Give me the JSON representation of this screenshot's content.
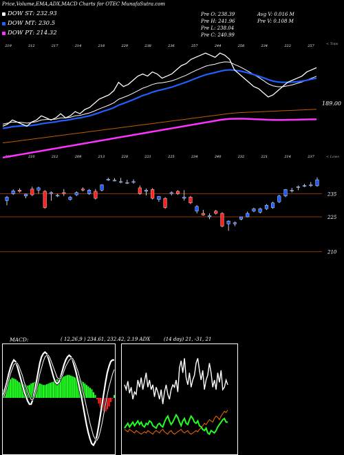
{
  "title": "Price,Volume,EMA,ADX,MACD Charts for OTEC MunafaSutra.com",
  "legend": [
    {
      "label": "DOW ST: 232.93",
      "color": "#ffffff"
    },
    {
      "label": "DOW MT: 230.5",
      "color": "#2060ff"
    },
    {
      "label": "DOW PT: 214.32",
      "color": "#ff33ff"
    }
  ],
  "stats": [
    {
      "text": "Pre  O: 238.39",
      "col": 0,
      "row": 0
    },
    {
      "text": "Pre  H: 241.96",
      "col": 0,
      "row": 1
    },
    {
      "text": "Pre  L: 238.04",
      "col": 0,
      "row": 2
    },
    {
      "text": "Pre  C: 240.99",
      "col": 0,
      "row": 3
    },
    {
      "text": "Avg V: 0.016  M",
      "col": 1,
      "row": 0
    },
    {
      "text": "Pre  V: 0.108  M",
      "col": 1,
      "row": 1
    }
  ],
  "side_labels": {
    "top": "< Tops",
    "low": "< Lows"
  },
  "ema_value_label": "189.00",
  "macd_label": "MACD:",
  "macd_params": "( 12,26,9 ) 234.61,  232.42,  2.19  ADX",
  "adx_params": "(14  day) 21,  -31,  21",
  "colors": {
    "up": "#1e5cff",
    "down": "#ff2020",
    "st": "#ffffff",
    "mt": "#2060ff",
    "pt": "#ff33ff",
    "lt": "#c06000",
    "grid": "#8b3a00",
    "macd_hist": "#22ff22"
  },
  "chart_data": [
    {
      "type": "line",
      "name": "EMA",
      "x": [
        1,
        2,
        3,
        4,
        5,
        6,
        7,
        8,
        9,
        10,
        11,
        12,
        13,
        14,
        15,
        16,
        17,
        18,
        19,
        20,
        21,
        22,
        23,
        24,
        25,
        26,
        27,
        28,
        29,
        30,
        31,
        32,
        33,
        34,
        35,
        36,
        37,
        38,
        39,
        40,
        41,
        42,
        43,
        44,
        45,
        46,
        47,
        48,
        49,
        50,
        51,
        52,
        53,
        54,
        55,
        56,
        57,
        58,
        59,
        60,
        61,
        62,
        63,
        64,
        65,
        66
      ],
      "top_labels": [
        "219",
        "212",
        "217",
        "214",
        "218",
        "229",
        "238",
        "236",
        "257",
        "244",
        "258",
        "234",
        "222",
        "257"
      ],
      "low_labels": [
        "217",
        "210",
        "212",
        "209",
        "213",
        "228",
        "221",
        "225",
        "234",
        "240",
        "232",
        "221",
        "214",
        "237"
      ],
      "series": [
        {
          "role": "price",
          "values": [
            211,
            212,
            214,
            213,
            212,
            211,
            213,
            214,
            216,
            215,
            214,
            215,
            217,
            215,
            216,
            218,
            217,
            219,
            220,
            222,
            224,
            225,
            226,
            228,
            232,
            230,
            231,
            233,
            235,
            236,
            235,
            237,
            236,
            234,
            235,
            236,
            238,
            240,
            241,
            243,
            244,
            245,
            246,
            245,
            244,
            246,
            245,
            243,
            238,
            236,
            234,
            232,
            230,
            229,
            227,
            225,
            226,
            228,
            230,
            232,
            233,
            234,
            235,
            237,
            238,
            239
          ]
        },
        {
          "role": "st",
          "values": [
            212,
            212.5,
            213,
            213,
            212.8,
            212.5,
            212.8,
            213.2,
            214,
            214.2,
            214.2,
            214.4,
            215,
            215,
            215.3,
            216,
            216.2,
            216.8,
            217.4,
            218.3,
            219.3,
            220.2,
            221.1,
            222.2,
            223.9,
            224.8,
            225.7,
            226.8,
            228,
            229.2,
            230,
            231,
            231.6,
            231.8,
            232.2,
            232.7,
            233.5,
            234.5,
            235.4,
            236.6,
            237.7,
            238.7,
            239.7,
            240.3,
            240.7,
            241.4,
            241.8,
            241.7,
            240.6,
            239.6,
            238.4,
            237.1,
            235.7,
            234.4,
            232.9,
            231.3,
            230.3,
            229.9,
            229.9,
            230.3,
            230.8,
            231.5,
            232.2,
            233.1,
            234,
            234.9
          ]
        },
        {
          "role": "mt",
          "values": [
            210,
            210.3,
            210.8,
            211,
            211.2,
            211.2,
            211.4,
            211.7,
            212.2,
            212.5,
            212.8,
            213.1,
            213.6,
            213.8,
            214.2,
            214.7,
            215,
            215.5,
            216,
            216.7,
            217.5,
            218.3,
            219,
            219.9,
            221.1,
            221.9,
            222.8,
            223.7,
            224.7,
            225.7,
            226.4,
            227.3,
            228,
            228.5,
            229.1,
            229.7,
            230.5,
            231.3,
            232.1,
            233,
            233.9,
            234.8,
            235.6,
            236.2,
            236.7,
            237.3,
            237.8,
            238,
            237.8,
            237.5,
            237,
            236.4,
            235.7,
            235,
            234.2,
            233.3,
            232.6,
            232.2,
            232,
            232,
            232.1,
            232.3,
            232.6,
            233,
            233.5,
            234
          ]
        },
        {
          "role": "pt",
          "values": [
            196,
            196.4,
            196.8,
            197.2,
            197.6,
            198,
            198.4,
            198.8,
            199.2,
            199.6,
            200,
            200.4,
            200.8,
            201.2,
            201.6,
            202,
            202.4,
            202.8,
            203.2,
            203.6,
            204,
            204.4,
            204.8,
            205.2,
            205.6,
            206,
            206.4,
            206.8,
            207.2,
            207.6,
            208,
            208.4,
            208.8,
            209.2,
            209.6,
            210,
            210.4,
            210.8,
            211.2,
            211.6,
            212,
            212.4,
            212.8,
            213.2,
            213.6,
            214,
            214.3,
            214.5,
            214.6,
            214.6,
            214.6,
            214.5,
            214.4,
            214.3,
            214.2,
            214.1,
            214,
            214,
            214,
            214.05,
            214.1,
            214.15,
            214.2,
            214.25,
            214.3,
            214.32
          ]
        },
        {
          "role": "lt",
          "values": [
            203,
            203.3,
            203.6,
            203.9,
            204.2,
            204.5,
            204.8,
            205.1,
            205.4,
            205.7,
            206,
            206.3,
            206.6,
            206.9,
            207.2,
            207.5,
            207.8,
            208.1,
            208.4,
            208.7,
            209,
            209.3,
            209.6,
            209.9,
            210.2,
            210.5,
            210.8,
            211.1,
            211.4,
            211.7,
            212,
            212.3,
            212.6,
            212.9,
            213.2,
            213.5,
            213.8,
            214.1,
            214.4,
            214.7,
            215,
            215.3,
            215.6,
            215.9,
            216.2,
            216.5,
            216.8,
            217.1,
            217.3,
            217.5,
            217.6,
            217.7,
            217.8,
            217.9,
            218,
            218.1,
            218.2,
            218.3,
            218.4,
            218.5,
            218.6,
            218.7,
            218.8,
            218.9,
            219,
            219.1
          ]
        }
      ]
    },
    {
      "type": "candlestick",
      "name": "Price",
      "axis_ticks": [
        235,
        225,
        210
      ],
      "candles": [
        {
          "o": 232,
          "h": 234,
          "l": 230,
          "c": 233.5
        },
        {
          "o": 235,
          "h": 236.8,
          "l": 234.5,
          "c": 236.2
        },
        {
          "o": 236.5,
          "h": 237.3,
          "l": 235.5,
          "c": 236
        },
        {
          "o": 234,
          "h": 235,
          "l": 233,
          "c": 234.8
        },
        {
          "o": 237,
          "h": 238,
          "l": 234,
          "c": 234.5
        },
        {
          "o": 236.5,
          "h": 238,
          "l": 235,
          "c": 237.5
        },
        {
          "o": 236,
          "h": 236.5,
          "l": 228.5,
          "c": 229
        },
        {
          "o": 235,
          "h": 236,
          "l": 232,
          "c": 235.5
        },
        {
          "o": 234,
          "h": 235,
          "l": 233.5,
          "c": 234.3
        },
        {
          "o": 235.5,
          "h": 237,
          "l": 234,
          "c": 235
        },
        {
          "o": 232.5,
          "h": 234,
          "l": 232,
          "c": 233.5
        },
        {
          "o": 234.5,
          "h": 236,
          "l": 234,
          "c": 235.5
        },
        {
          "o": 237,
          "h": 237.7,
          "l": 236,
          "c": 236.5
        },
        {
          "o": 235,
          "h": 237,
          "l": 234.5,
          "c": 236.5
        },
        {
          "o": 236,
          "h": 237,
          "l": 232.5,
          "c": 233
        },
        {
          "o": 236.5,
          "h": 239,
          "l": 236,
          "c": 238.8
        },
        {
          "o": 241.2,
          "h": 241.8,
          "l": 240.5,
          "c": 241.2
        },
        {
          "o": 240.8,
          "h": 241.7,
          "l": 240.3,
          "c": 240.8
        },
        {
          "o": 240.2,
          "h": 241.8,
          "l": 239.5,
          "c": 240.2
        },
        {
          "o": 239.8,
          "h": 241,
          "l": 239.2,
          "c": 239.8
        },
        {
          "o": 240.2,
          "h": 241.2,
          "l": 239.3,
          "c": 240.2
        },
        {
          "o": 237.5,
          "h": 238.5,
          "l": 234.5,
          "c": 235
        },
        {
          "o": 236,
          "h": 237.2,
          "l": 234.2,
          "c": 236.5
        },
        {
          "o": 236.8,
          "h": 237.4,
          "l": 232.5,
          "c": 233
        },
        {
          "o": 232.5,
          "h": 234,
          "l": 231.5,
          "c": 233.8
        },
        {
          "o": 233,
          "h": 233.5,
          "l": 228.5,
          "c": 229
        },
        {
          "o": 235,
          "h": 236,
          "l": 234.3,
          "c": 235.5
        },
        {
          "o": 236,
          "h": 236.5,
          "l": 234.5,
          "c": 235
        },
        {
          "o": 233,
          "h": 236.5,
          "l": 232,
          "c": 233.5
        },
        {
          "o": 233.5,
          "h": 234,
          "l": 230.5,
          "c": 231
        },
        {
          "o": 227.5,
          "h": 230,
          "l": 226.5,
          "c": 229.5
        },
        {
          "o": 226.5,
          "h": 228,
          "l": 225.5,
          "c": 225.8
        },
        {
          "o": 225,
          "h": 226.5,
          "l": 224,
          "c": 225.5
        },
        {
          "o": 227.5,
          "h": 228,
          "l": 226,
          "c": 226.5
        },
        {
          "o": 226.5,
          "h": 227,
          "l": 220.5,
          "c": 221
        },
        {
          "o": 222,
          "h": 223.5,
          "l": 219,
          "c": 223.2
        },
        {
          "o": 222,
          "h": 223,
          "l": 221,
          "c": 222.5
        },
        {
          "o": 224,
          "h": 225,
          "l": 223.5,
          "c": 225
        },
        {
          "o": 225,
          "h": 227.3,
          "l": 224.8,
          "c": 226.5
        },
        {
          "o": 227.5,
          "h": 229,
          "l": 227,
          "c": 228.5
        },
        {
          "o": 227,
          "h": 229,
          "l": 226.5,
          "c": 228.5
        },
        {
          "o": 228.5,
          "h": 230.5,
          "l": 228,
          "c": 230
        },
        {
          "o": 229,
          "h": 231.5,
          "l": 228.5,
          "c": 231
        },
        {
          "o": 231.5,
          "h": 234.5,
          "l": 231,
          "c": 234
        },
        {
          "o": 234,
          "h": 237,
          "l": 233.5,
          "c": 236.8
        },
        {
          "o": 236.2,
          "h": 237.5,
          "l": 235.5,
          "c": 236.5
        },
        {
          "o": 237.8,
          "h": 238.5,
          "l": 236.5,
          "c": 238
        },
        {
          "o": 238.2,
          "h": 239.2,
          "l": 237.8,
          "c": 238.5
        },
        {
          "o": 238.4,
          "h": 240,
          "l": 237.9,
          "c": 238.8
        },
        {
          "o": 238.4,
          "h": 242,
          "l": 238,
          "c": 241
        }
      ]
    },
    {
      "type": "bar",
      "name": "MACD",
      "histogram": [
        0.6,
        0.8,
        1.0,
        1.2,
        1.3,
        1.4,
        1.35,
        1.3,
        1.2,
        1.1,
        1.05,
        1.0,
        0.95,
        0.9,
        0.85,
        0.9,
        1.0,
        1.05,
        1.1,
        1.1,
        1.05,
        1.0,
        0.95,
        0.9,
        0.9,
        0.95,
        1.0,
        1.05,
        1.1,
        1.15,
        1.2,
        1.3,
        1.35,
        1.4,
        1.45,
        1.5,
        1.55,
        1.6,
        1.6,
        1.55,
        1.5,
        1.45,
        1.4,
        1.35,
        1.3,
        1.2,
        1.1,
        1.0,
        0.9,
        0.8,
        0.7,
        0.6,
        0.4,
        0.2,
        -0.1,
        -0.4,
        -0.7,
        -0.9,
        -1.0,
        -0.95,
        -0.8,
        -0.6,
        -0.3,
        -0.05,
        0.2
      ],
      "macd_line": [
        0.2,
        0.6,
        1.0,
        1.5,
        1.9,
        2.2,
        2.4,
        2.3,
        2.0,
        1.6,
        1.2,
        0.8,
        0.4,
        0.1,
        -0.2,
        -0.4,
        -0.4,
        -0.1,
        0.4,
        1.0,
        1.6,
        2.2,
        2.6,
        2.8,
        2.9,
        2.8,
        2.5,
        2.1,
        1.7,
        1.3,
        1.0,
        0.9,
        1.0,
        1.3,
        1.7,
        2.1,
        2.4,
        2.6,
        2.7,
        2.6,
        2.4,
        2.0,
        1.6,
        1.1,
        0.6,
        0.1,
        -0.5,
        -1.1,
        -1.7,
        -2.2,
        -2.6,
        -2.9,
        -3.0,
        -2.8,
        -2.4,
        -1.8,
        -1.1,
        -0.4,
        0.3,
        1.0,
        1.6,
        2.0,
        2.3,
        2.4,
        2.4
      ],
      "signal_line": [
        0.0,
        0.3,
        0.7,
        1.1,
        1.5,
        1.8,
        2.1,
        2.2,
        2.2,
        2.0,
        1.7,
        1.4,
        1.0,
        0.7,
        0.4,
        0.1,
        -0.1,
        -0.1,
        0.1,
        0.5,
        1.0,
        1.5,
        1.9,
        2.3,
        2.6,
        2.7,
        2.7,
        2.5,
        2.2,
        1.9,
        1.6,
        1.3,
        1.2,
        1.2,
        1.4,
        1.7,
        2.0,
        2.2,
        2.4,
        2.5,
        2.5,
        2.3,
        2.0,
        1.7,
        1.3,
        0.9,
        0.4,
        -0.1,
        -0.6,
        -1.1,
        -1.6,
        -2.0,
        -2.4,
        -2.6,
        -2.7,
        -2.5,
        -2.1,
        -1.6,
        -1.0,
        -0.4,
        0.2,
        0.7,
        1.1,
        1.5,
        1.8
      ],
      "ylim": [
        -3.6,
        3.6
      ]
    },
    {
      "type": "line",
      "name": "ADX",
      "adx": [
        52,
        48,
        55,
        45,
        50,
        40,
        46,
        44,
        56,
        50,
        58,
        48,
        55,
        62,
        50,
        56,
        48,
        52,
        42,
        50,
        46,
        40,
        48,
        36,
        46,
        52,
        44,
        40,
        48,
        52,
        50,
        56,
        46,
        66,
        72,
        62,
        74,
        58,
        52,
        62,
        50,
        56,
        60,
        70,
        74,
        64,
        56,
        64,
        48,
        56,
        60,
        70,
        62,
        50,
        56,
        48,
        62,
        54,
        64,
        48,
        50,
        56,
        52
      ],
      "plus_di": [
        16,
        18,
        20,
        17,
        19,
        21,
        18,
        20,
        22,
        19,
        21,
        18,
        17,
        20,
        19,
        22,
        21,
        18,
        17,
        16,
        19,
        20,
        18,
        17,
        21,
        24,
        26,
        22,
        19,
        21,
        24,
        27,
        25,
        21,
        18,
        22,
        24,
        20,
        19,
        23,
        26,
        24,
        21,
        20,
        22,
        18,
        17,
        15,
        14,
        16,
        12,
        11,
        14,
        13,
        12,
        14,
        17,
        19,
        21,
        23,
        24,
        21,
        21
      ],
      "minus_di": [
        15,
        14,
        13,
        15,
        14,
        13,
        12,
        14,
        13,
        12,
        11,
        12,
        13,
        12,
        14,
        13,
        12,
        11,
        13,
        14,
        13,
        12,
        14,
        15,
        13,
        12,
        11,
        13,
        14,
        12,
        11,
        12,
        13,
        14,
        15,
        13,
        12,
        13,
        14,
        12,
        11,
        12,
        13,
        14,
        13,
        15,
        16,
        18,
        20,
        19,
        21,
        23,
        22,
        21,
        24,
        26,
        25,
        23,
        26,
        28,
        30,
        29,
        31
      ]
    }
  ]
}
